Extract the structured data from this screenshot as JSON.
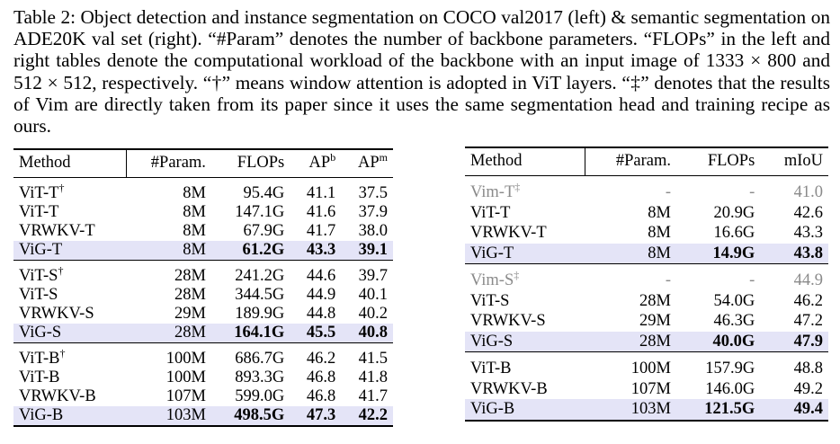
{
  "caption": "Table 2: Object detection and instance segmentation on COCO val2017 (left) & semantic segmentation on ADE20K val set (right). “#Param” denotes the number of backbone parameters. “FLOPs” in the left and right tables denote the computational workload of the backbone with an input image of 1333 × 800 and 512 × 512, respectively. “†” means window attention is adopted in ViT layers. “‡” denotes that the results of Vim are directly taken from its paper since it uses the same segmentation head and training recipe as ours.",
  "left_table": {
    "headers": [
      "Method",
      "#Param.",
      "FLOPs",
      {
        "text": "AP",
        "sup": "b"
      },
      {
        "text": "AP",
        "sup": "m"
      }
    ],
    "groups": [
      [
        {
          "method": "ViT-T",
          "mark": "†",
          "values": [
            "8M",
            "95.4G",
            "41.1",
            "37.5"
          ]
        },
        {
          "method": "ViT-T",
          "values": [
            "8M",
            "147.1G",
            "41.6",
            "37.9"
          ]
        },
        {
          "method": "VRWKV-T",
          "values": [
            "8M",
            "67.9G",
            "41.7",
            "38.0"
          ]
        },
        {
          "method": "ViG-T",
          "highlight": true,
          "values": [
            "8M",
            "61.2G",
            "43.3",
            "39.1"
          ]
        }
      ],
      [
        {
          "method": "ViT-S",
          "mark": "†",
          "values": [
            "28M",
            "241.2G",
            "44.6",
            "39.7"
          ]
        },
        {
          "method": "ViT-S",
          "values": [
            "28M",
            "344.5G",
            "44.9",
            "40.1"
          ]
        },
        {
          "method": "VRWKV-S",
          "values": [
            "29M",
            "189.9G",
            "44.8",
            "40.2"
          ]
        },
        {
          "method": "ViG-S",
          "highlight": true,
          "values": [
            "28M",
            "164.1G",
            "45.5",
            "40.8"
          ]
        }
      ],
      [
        {
          "method": "ViT-B",
          "mark": "†",
          "values": [
            "100M",
            "686.7G",
            "46.2",
            "41.5"
          ]
        },
        {
          "method": "ViT-B",
          "values": [
            "100M",
            "893.3G",
            "46.8",
            "41.8"
          ]
        },
        {
          "method": "VRWKV-B",
          "values": [
            "107M",
            "599.0G",
            "46.8",
            "41.7"
          ]
        },
        {
          "method": "ViG-B",
          "highlight": true,
          "values": [
            "103M",
            "498.5G",
            "47.3",
            "42.2"
          ]
        }
      ]
    ]
  },
  "right_table": {
    "headers": [
      "Method",
      "#Param.",
      "FLOPs",
      "mIoU"
    ],
    "groups": [
      [
        {
          "method": "Vim-T",
          "mark": "‡",
          "gray": true,
          "values": [
            "-",
            "-",
            "41.0"
          ]
        },
        {
          "method": "ViT-T",
          "values": [
            "8M",
            "20.9G",
            "42.6"
          ]
        },
        {
          "method": "VRWKV-T",
          "values": [
            "8M",
            "16.6G",
            "43.3"
          ]
        },
        {
          "method": "ViG-T",
          "highlight": true,
          "values": [
            "8M",
            "14.9G",
            "43.8"
          ]
        }
      ],
      [
        {
          "method": "Vim-S",
          "mark": "‡",
          "gray": true,
          "values": [
            "-",
            "-",
            "44.9"
          ]
        },
        {
          "method": "ViT-S",
          "values": [
            "28M",
            "54.0G",
            "46.2"
          ]
        },
        {
          "method": "VRWKV-S",
          "values": [
            "29M",
            "46.3G",
            "47.2"
          ]
        },
        {
          "method": "ViG-S",
          "highlight": true,
          "values": [
            "28M",
            "40.0G",
            "47.9"
          ]
        }
      ],
      [
        {
          "method": "ViT-B",
          "values": [
            "100M",
            "157.9G",
            "48.8"
          ]
        },
        {
          "method": "VRWKV-B",
          "values": [
            "107M",
            "146.0G",
            "49.2"
          ]
        },
        {
          "method": "ViG-B",
          "highlight": true,
          "values": [
            "103M",
            "121.5G",
            "49.4"
          ]
        }
      ]
    ]
  }
}
